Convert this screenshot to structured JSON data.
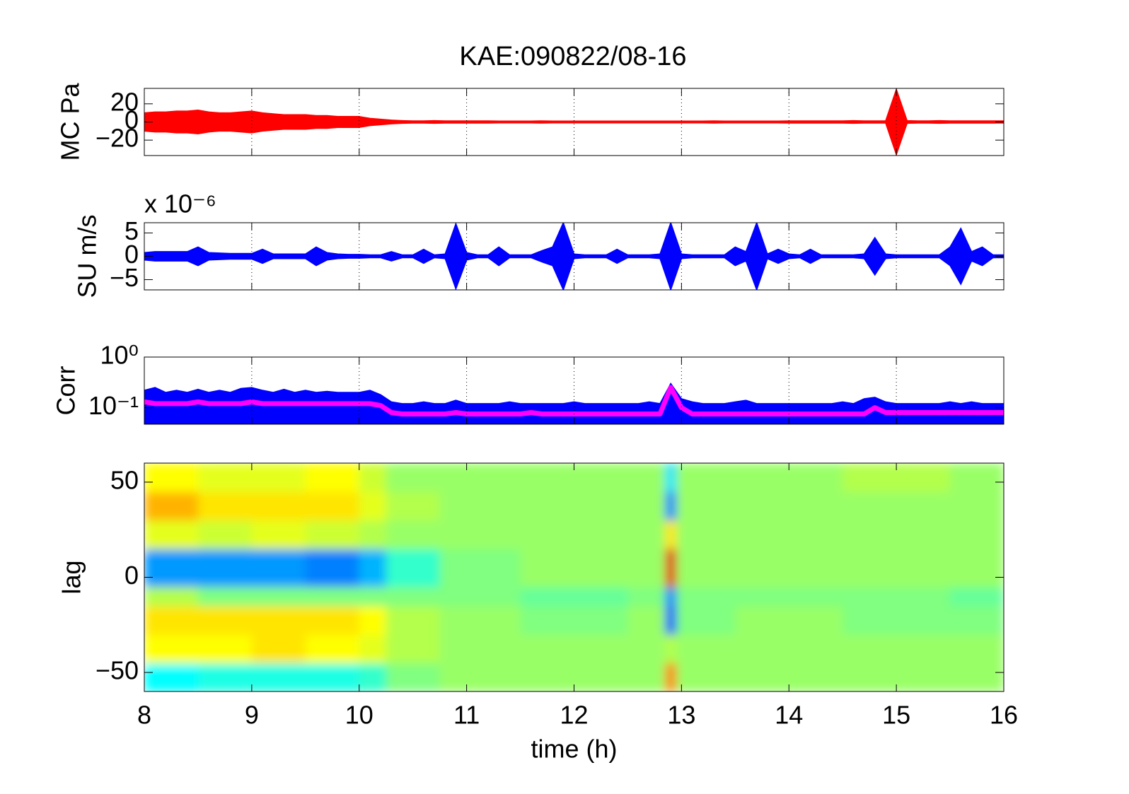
{
  "chart_data": [
    {
      "type": "line",
      "title": "KAE:090822/08-16",
      "ylabel": "MC Pa",
      "xlim": [
        8,
        16
      ],
      "xticks": [
        8,
        9,
        10,
        11,
        12,
        13,
        14,
        15,
        16
      ],
      "grid": true,
      "ylim": [
        -37,
        37
      ],
      "yticks": [
        {
          "value": -20,
          "label": "−20"
        },
        0,
        20
      ],
      "x": [
        8,
        8.1,
        8.2,
        8.3,
        8.4,
        8.5,
        8.6,
        8.7,
        8.8,
        8.9,
        9,
        9.1,
        9.2,
        9.3,
        9.4,
        9.5,
        9.6,
        9.7,
        9.8,
        9.9,
        10,
        10.1,
        10.2,
        10.3,
        10.4,
        10.5,
        10.6,
        10.7,
        10.8,
        10.9,
        11,
        11.1,
        11.2,
        11.3,
        11.4,
        11.5,
        11.6,
        11.7,
        11.8,
        11.9,
        12,
        12.1,
        12.2,
        12.3,
        12.4,
        12.5,
        12.6,
        12.7,
        12.8,
        12.9,
        13,
        13.1,
        13.2,
        13.3,
        13.4,
        13.5,
        13.6,
        13.7,
        13.8,
        13.9,
        14,
        14.1,
        14.2,
        14.3,
        14.4,
        14.5,
        14.6,
        14.7,
        14.8,
        14.9,
        15,
        15.1,
        15.2,
        15.3,
        15.4,
        15.5,
        15.6,
        15.7,
        15.8,
        15.9,
        16
      ],
      "series": [
        {
          "color": "#ff0000",
          "mirror": true,
          "values": [
            10,
            11,
            11,
            12,
            12,
            13,
            11,
            10,
            10,
            11,
            12,
            10,
            9,
            8,
            8,
            8,
            7,
            7,
            6,
            6,
            6,
            4,
            3,
            2,
            1.5,
            1.2,
            1.2,
            1.5,
            1.2,
            1.2,
            1.2,
            1.2,
            1.2,
            1,
            1,
            1,
            1,
            1.2,
            1,
            1,
            1,
            1,
            1,
            1,
            1,
            1,
            1,
            1,
            1,
            1,
            1,
            1,
            1,
            1.2,
            1,
            1,
            1,
            1,
            1,
            1,
            1.2,
            1.2,
            1.2,
            1.2,
            1.2,
            1.2,
            1.5,
            1.2,
            1.2,
            1.2,
            36,
            1.5,
            1.2,
            1.2,
            1.5,
            1.2,
            1.2,
            1.2,
            1.2,
            1.2,
            1.2
          ]
        }
      ]
    },
    {
      "type": "line",
      "ylabel": "SU m/s",
      "multiplier": "x 10⁻⁶",
      "xlim": [
        8,
        16
      ],
      "xticks": [
        8,
        9,
        10,
        11,
        12,
        13,
        14,
        15,
        16
      ],
      "grid": true,
      "ylim": [
        -7.2,
        7.2
      ],
      "yticks": [
        {
          "value": -5,
          "label": "−5"
        },
        0,
        5
      ],
      "x": [
        8,
        8.1,
        8.2,
        8.3,
        8.4,
        8.5,
        8.6,
        8.7,
        8.8,
        8.9,
        9,
        9.1,
        9.2,
        9.3,
        9.4,
        9.5,
        9.6,
        9.7,
        9.8,
        9.9,
        10,
        10.1,
        10.2,
        10.3,
        10.4,
        10.5,
        10.6,
        10.7,
        10.8,
        10.9,
        11,
        11.1,
        11.2,
        11.3,
        11.4,
        11.5,
        11.6,
        11.7,
        11.8,
        11.9,
        12,
        12.1,
        12.2,
        12.3,
        12.4,
        12.5,
        12.6,
        12.7,
        12.8,
        12.9,
        13,
        13.1,
        13.2,
        13.3,
        13.4,
        13.5,
        13.6,
        13.7,
        13.8,
        13.9,
        14,
        14.1,
        14.2,
        14.3,
        14.4,
        14.5,
        14.6,
        14.7,
        14.8,
        14.9,
        15,
        15.1,
        15.2,
        15.3,
        15.4,
        15.5,
        15.6,
        15.7,
        15.8,
        15.9,
        16
      ],
      "series": [
        {
          "color": "#0000ff",
          "mirror": true,
          "values": [
            0.8,
            1,
            1,
            1,
            1,
            2,
            0.8,
            0.7,
            0.6,
            0.6,
            0.6,
            1.5,
            0.5,
            0.5,
            0.5,
            0.5,
            2,
            0.8,
            0.5,
            0.4,
            0.4,
            0.3,
            0.3,
            1,
            0.3,
            0.3,
            1.5,
            0.3,
            0.5,
            7,
            0.8,
            0.3,
            0.3,
            2,
            0.3,
            0.3,
            0.3,
            1.2,
            2,
            7.2,
            0.5,
            0.3,
            0.3,
            0.3,
            1.5,
            0.3,
            0.3,
            0.3,
            0.5,
            7.2,
            0.5,
            0.3,
            0.3,
            0.3,
            0.3,
            2,
            1,
            7.2,
            0.5,
            1.5,
            0.5,
            0.3,
            1.5,
            0.3,
            0.3,
            0.3,
            0.3,
            0.5,
            4,
            0.5,
            0.3,
            0.3,
            0.3,
            0.3,
            0.3,
            2,
            6,
            1,
            2,
            0.3,
            0.3
          ]
        }
      ]
    },
    {
      "type": "line",
      "ylabel": "Corr",
      "log": true,
      "xlim": [
        8,
        16
      ],
      "xticks": [
        8,
        9,
        10,
        11,
        12,
        13,
        14,
        15,
        16
      ],
      "grid": true,
      "ylim": [
        0.047,
        1
      ],
      "yticks": [
        {
          "value": 0.1,
          "label": "10⁻¹"
        },
        {
          "value": 1,
          "label": "10⁰"
        }
      ],
      "x": [
        8,
        8.1,
        8.2,
        8.3,
        8.4,
        8.5,
        8.6,
        8.7,
        8.8,
        8.9,
        9,
        9.1,
        9.2,
        9.3,
        9.4,
        9.5,
        9.6,
        9.7,
        9.8,
        9.9,
        10,
        10.1,
        10.2,
        10.3,
        10.4,
        10.5,
        10.6,
        10.7,
        10.8,
        10.9,
        11,
        11.1,
        11.2,
        11.3,
        11.4,
        11.5,
        11.6,
        11.7,
        11.8,
        11.9,
        12,
        12.1,
        12.2,
        12.3,
        12.4,
        12.5,
        12.6,
        12.7,
        12.8,
        12.9,
        13,
        13.1,
        13.2,
        13.3,
        13.4,
        13.5,
        13.6,
        13.7,
        13.8,
        13.9,
        14,
        14.1,
        14.2,
        14.3,
        14.4,
        14.5,
        14.6,
        14.7,
        14.8,
        14.9,
        15,
        15.1,
        15.2,
        15.3,
        15.4,
        15.5,
        15.6,
        15.7,
        15.8,
        15.9,
        16
      ],
      "series": [
        {
          "color": "#0000ff",
          "fill": true,
          "values": [
            0.22,
            0.25,
            0.2,
            0.22,
            0.2,
            0.23,
            0.2,
            0.22,
            0.2,
            0.24,
            0.25,
            0.22,
            0.2,
            0.23,
            0.2,
            0.22,
            0.2,
            0.21,
            0.2,
            0.2,
            0.2,
            0.22,
            0.18,
            0.13,
            0.12,
            0.12,
            0.13,
            0.12,
            0.12,
            0.14,
            0.12,
            0.12,
            0.12,
            0.12,
            0.13,
            0.12,
            0.12,
            0.12,
            0.12,
            0.12,
            0.13,
            0.12,
            0.12,
            0.12,
            0.12,
            0.12,
            0.12,
            0.13,
            0.12,
            0.3,
            0.15,
            0.13,
            0.12,
            0.12,
            0.12,
            0.13,
            0.14,
            0.12,
            0.12,
            0.12,
            0.12,
            0.12,
            0.12,
            0.12,
            0.12,
            0.13,
            0.12,
            0.15,
            0.16,
            0.13,
            0.12,
            0.12,
            0.12,
            0.12,
            0.12,
            0.13,
            0.12,
            0.13,
            0.12,
            0.12,
            0.12
          ]
        },
        {
          "color": "#ff00ff",
          "values": [
            0.13,
            0.12,
            0.12,
            0.12,
            0.12,
            0.13,
            0.12,
            0.12,
            0.12,
            0.12,
            0.13,
            0.12,
            0.12,
            0.12,
            0.12,
            0.12,
            0.12,
            0.12,
            0.12,
            0.12,
            0.12,
            0.12,
            0.11,
            0.08,
            0.075,
            0.075,
            0.075,
            0.075,
            0.075,
            0.08,
            0.075,
            0.075,
            0.075,
            0.075,
            0.075,
            0.075,
            0.08,
            0.075,
            0.075,
            0.075,
            0.075,
            0.075,
            0.075,
            0.075,
            0.075,
            0.075,
            0.075,
            0.075,
            0.075,
            0.25,
            0.1,
            0.075,
            0.075,
            0.075,
            0.075,
            0.075,
            0.075,
            0.075,
            0.075,
            0.075,
            0.075,
            0.075,
            0.075,
            0.075,
            0.075,
            0.075,
            0.075,
            0.075,
            0.1,
            0.08,
            0.08,
            0.08,
            0.08,
            0.08,
            0.08,
            0.08,
            0.08,
            0.08,
            0.08,
            0.08,
            0.08
          ]
        }
      ]
    },
    {
      "type": "heatmap",
      "ylabel": "lag",
      "xlabel": "time (h)",
      "xlim": [
        8,
        16
      ],
      "xticks": [
        8,
        9,
        10,
        11,
        12,
        13,
        14,
        15,
        16
      ],
      "ylim": [
        -60,
        60
      ],
      "yticks": [
        {
          "value": -50,
          "label": "−50"
        },
        0,
        50
      ],
      "clim": [
        -1,
        1
      ],
      "x_edges": [
        8,
        8.5,
        9,
        9.5,
        10,
        10.25,
        10.75,
        11.5,
        12.5,
        12.85,
        12.95,
        13.5,
        14.5,
        15.5,
        16
      ],
      "lag_edges": [
        -60,
        -45,
        -30,
        -15,
        -5,
        15,
        30,
        45,
        60
      ],
      "z": [
        [
          -0.25,
          -0.2,
          -0.2,
          -0.2,
          -0.15,
          0,
          0.05,
          0.05,
          0.05,
          0.5,
          0.05,
          0.05,
          0.05,
          0.05
        ],
        [
          0.25,
          0.25,
          0.3,
          0.25,
          0.2,
          0.1,
          0.05,
          0.05,
          0.05,
          0.1,
          0.05,
          0.05,
          0.05,
          0.05
        ],
        [
          0.3,
          0.3,
          0.3,
          0.3,
          0.25,
          0.1,
          0.05,
          0,
          0.05,
          -0.6,
          0,
          0.05,
          0,
          0
        ],
        [
          0.1,
          0,
          0,
          0,
          0,
          0,
          0,
          -0.05,
          0,
          -0.5,
          0,
          0,
          0,
          -0.05
        ],
        [
          -0.45,
          -0.45,
          -0.45,
          -0.5,
          -0.4,
          -0.15,
          0,
          0.05,
          0.05,
          0.8,
          0.05,
          0.05,
          0.05,
          0.05
        ],
        [
          0.2,
          0.15,
          0.2,
          0.15,
          0.1,
          0.05,
          0.05,
          0.05,
          0.05,
          0.3,
          0.05,
          0.05,
          0.05,
          0.05
        ],
        [
          0.4,
          0.3,
          0.3,
          0.3,
          0.2,
          0.1,
          0.05,
          0.05,
          0.05,
          -0.5,
          0.05,
          0.05,
          0.05,
          0.05
        ],
        [
          0.25,
          0.2,
          0.2,
          0.25,
          0.15,
          0.05,
          0.05,
          0.05,
          0.05,
          -0.3,
          0.05,
          0.05,
          0.1,
          0.05
        ]
      ]
    }
  ]
}
